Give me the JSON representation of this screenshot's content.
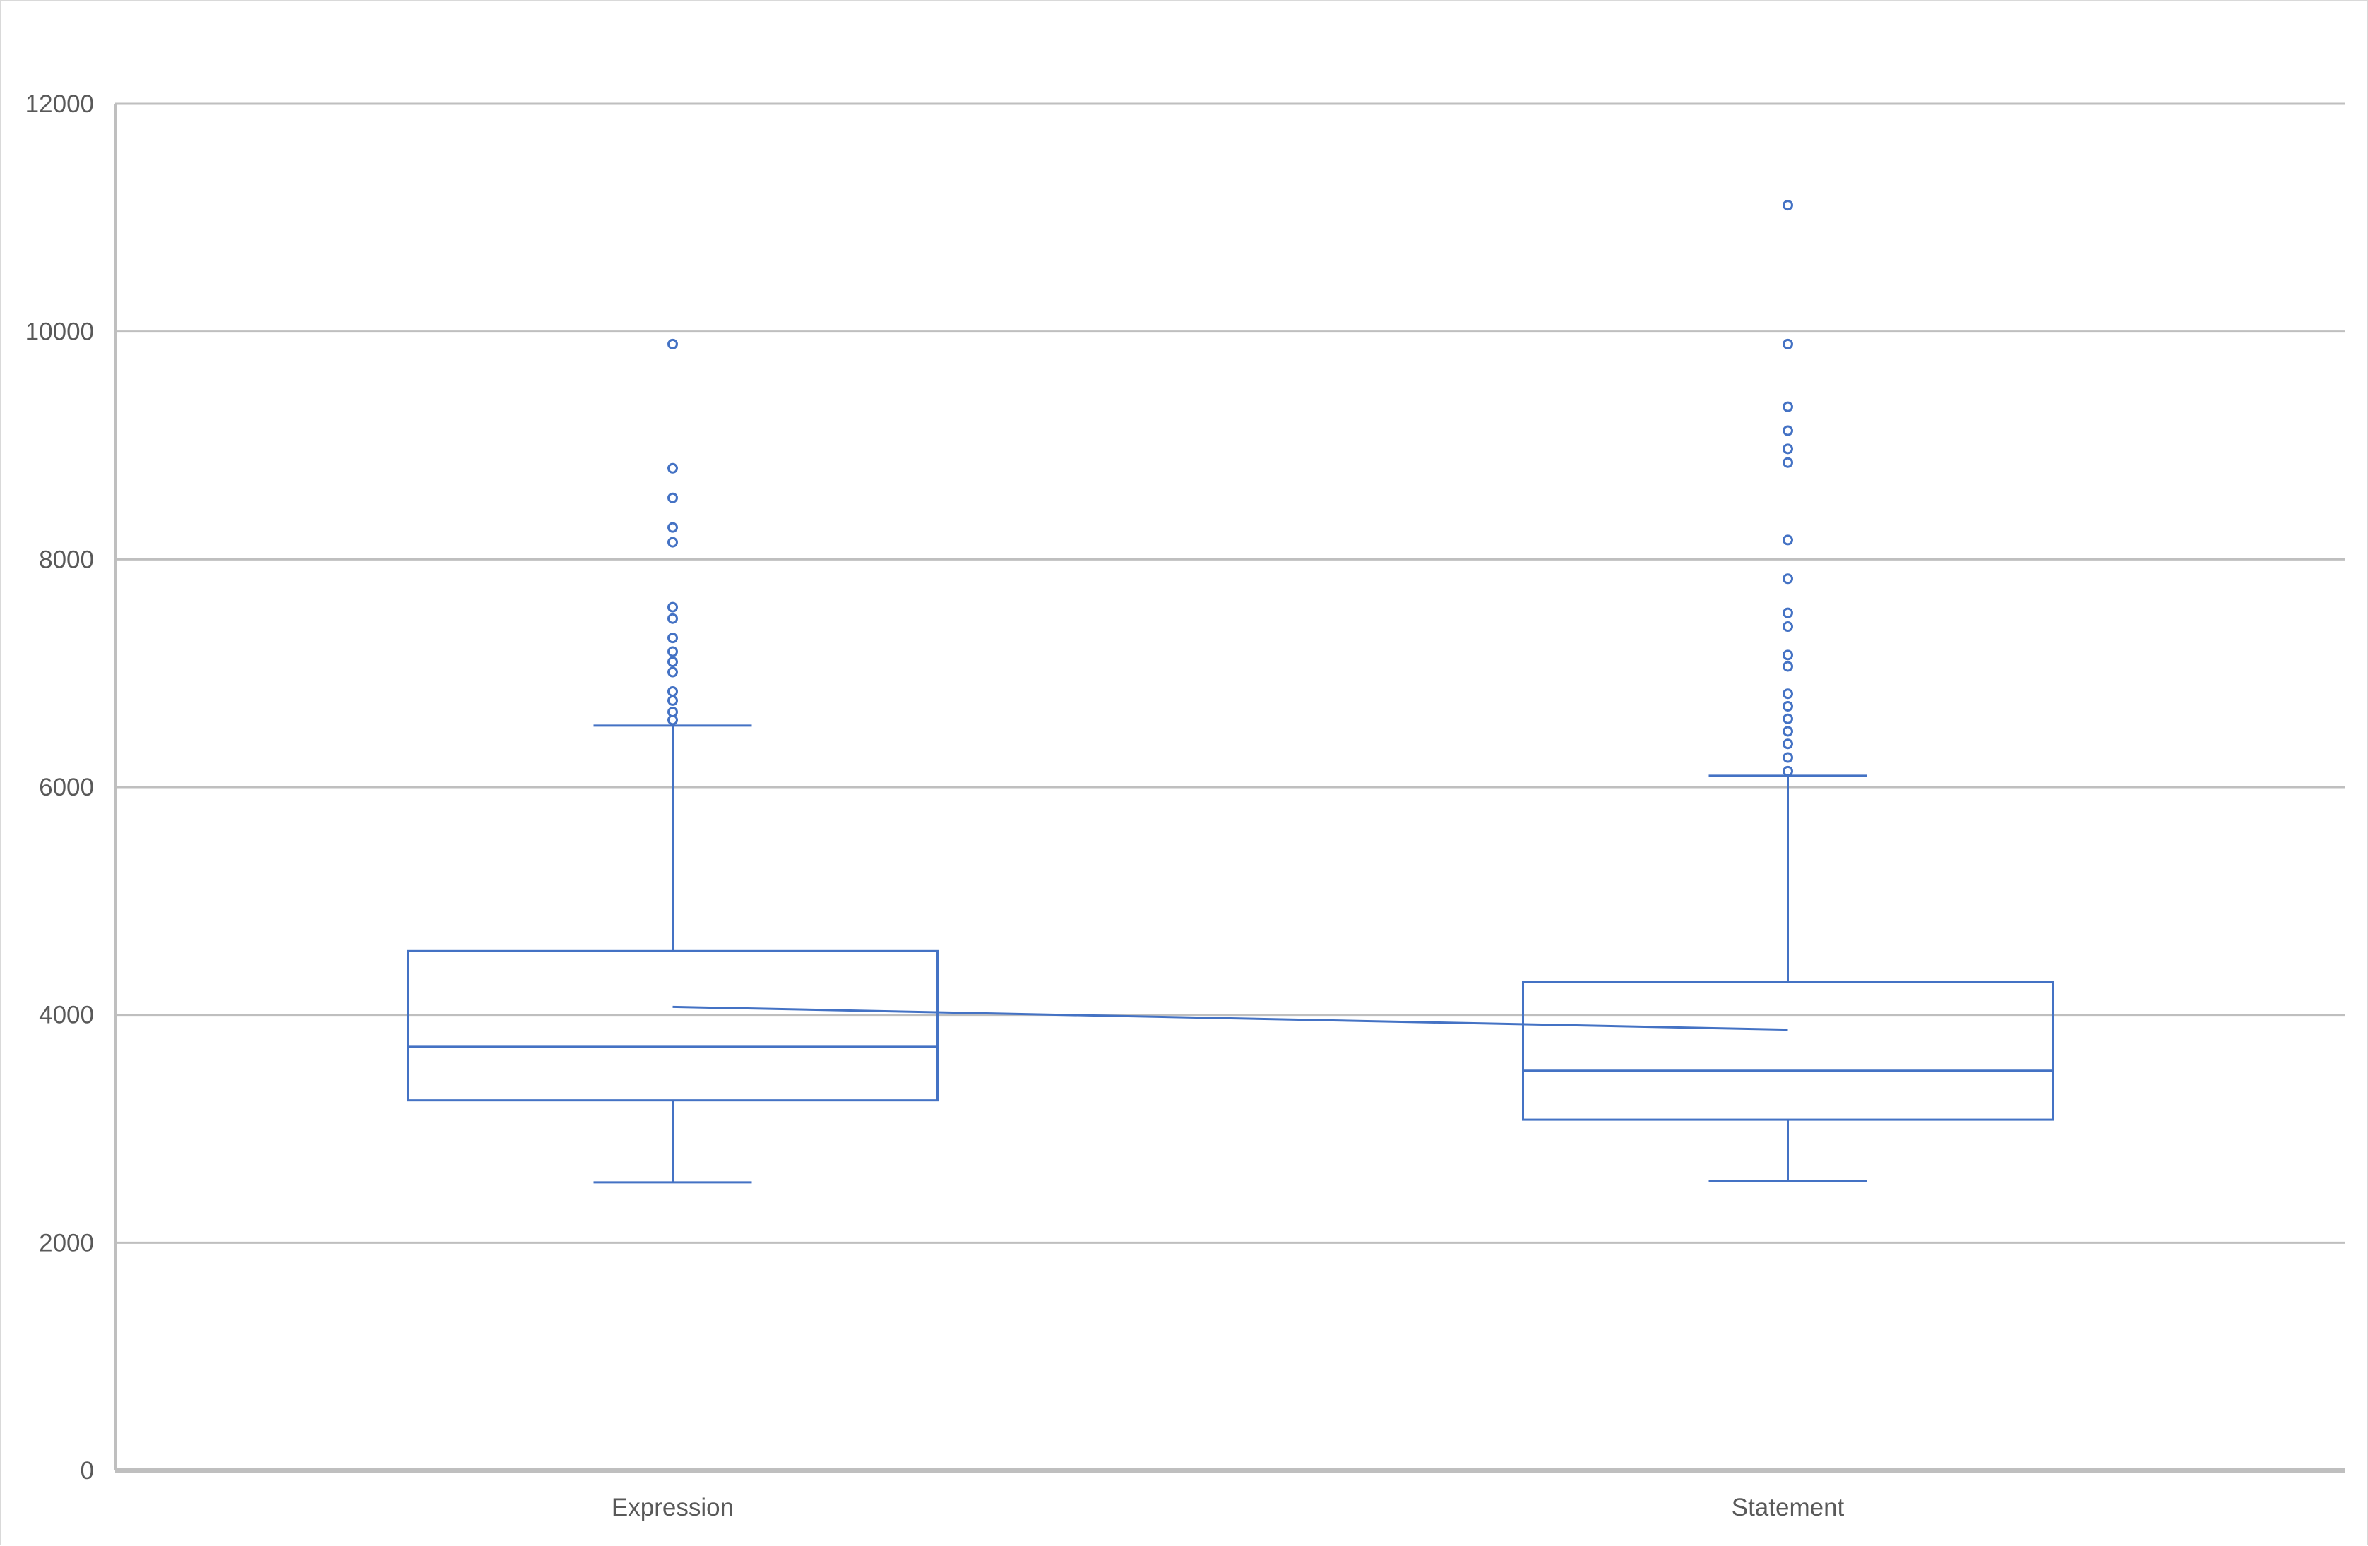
{
  "chart_data": {
    "type": "box",
    "categories": [
      "Expression",
      "Statement"
    ],
    "ylim": [
      0,
      12000
    ],
    "yticks": [
      0,
      2000,
      4000,
      6000,
      8000,
      10000,
      12000
    ],
    "grid": true,
    "title": "",
    "xlabel": "",
    "ylabel": "",
    "colors": {
      "series": "#4472c4",
      "grid": "#bfbfbf",
      "axis": "#bfbfbf",
      "text": "#595959"
    },
    "boxes": [
      {
        "category": "Expression",
        "whisker_low": 2530,
        "q1": 3250,
        "median": 3720,
        "q3": 4560,
        "whisker_high": 6540,
        "mean": 4070,
        "outliers": [
          6590,
          6660,
          6760,
          6840,
          7010,
          7100,
          7190,
          7310,
          7480,
          7580,
          8150,
          8280,
          8540,
          8800,
          9890
        ]
      },
      {
        "category": "Statement",
        "whisker_low": 2540,
        "q1": 3080,
        "median": 3510,
        "q3": 4290,
        "whisker_high": 6100,
        "mean": 3870,
        "outliers": [
          6140,
          6260,
          6380,
          6490,
          6600,
          6710,
          6820,
          7060,
          7160,
          7410,
          7530,
          7830,
          8170,
          8850,
          8970,
          9130,
          9340,
          9890,
          11110
        ]
      }
    ]
  }
}
